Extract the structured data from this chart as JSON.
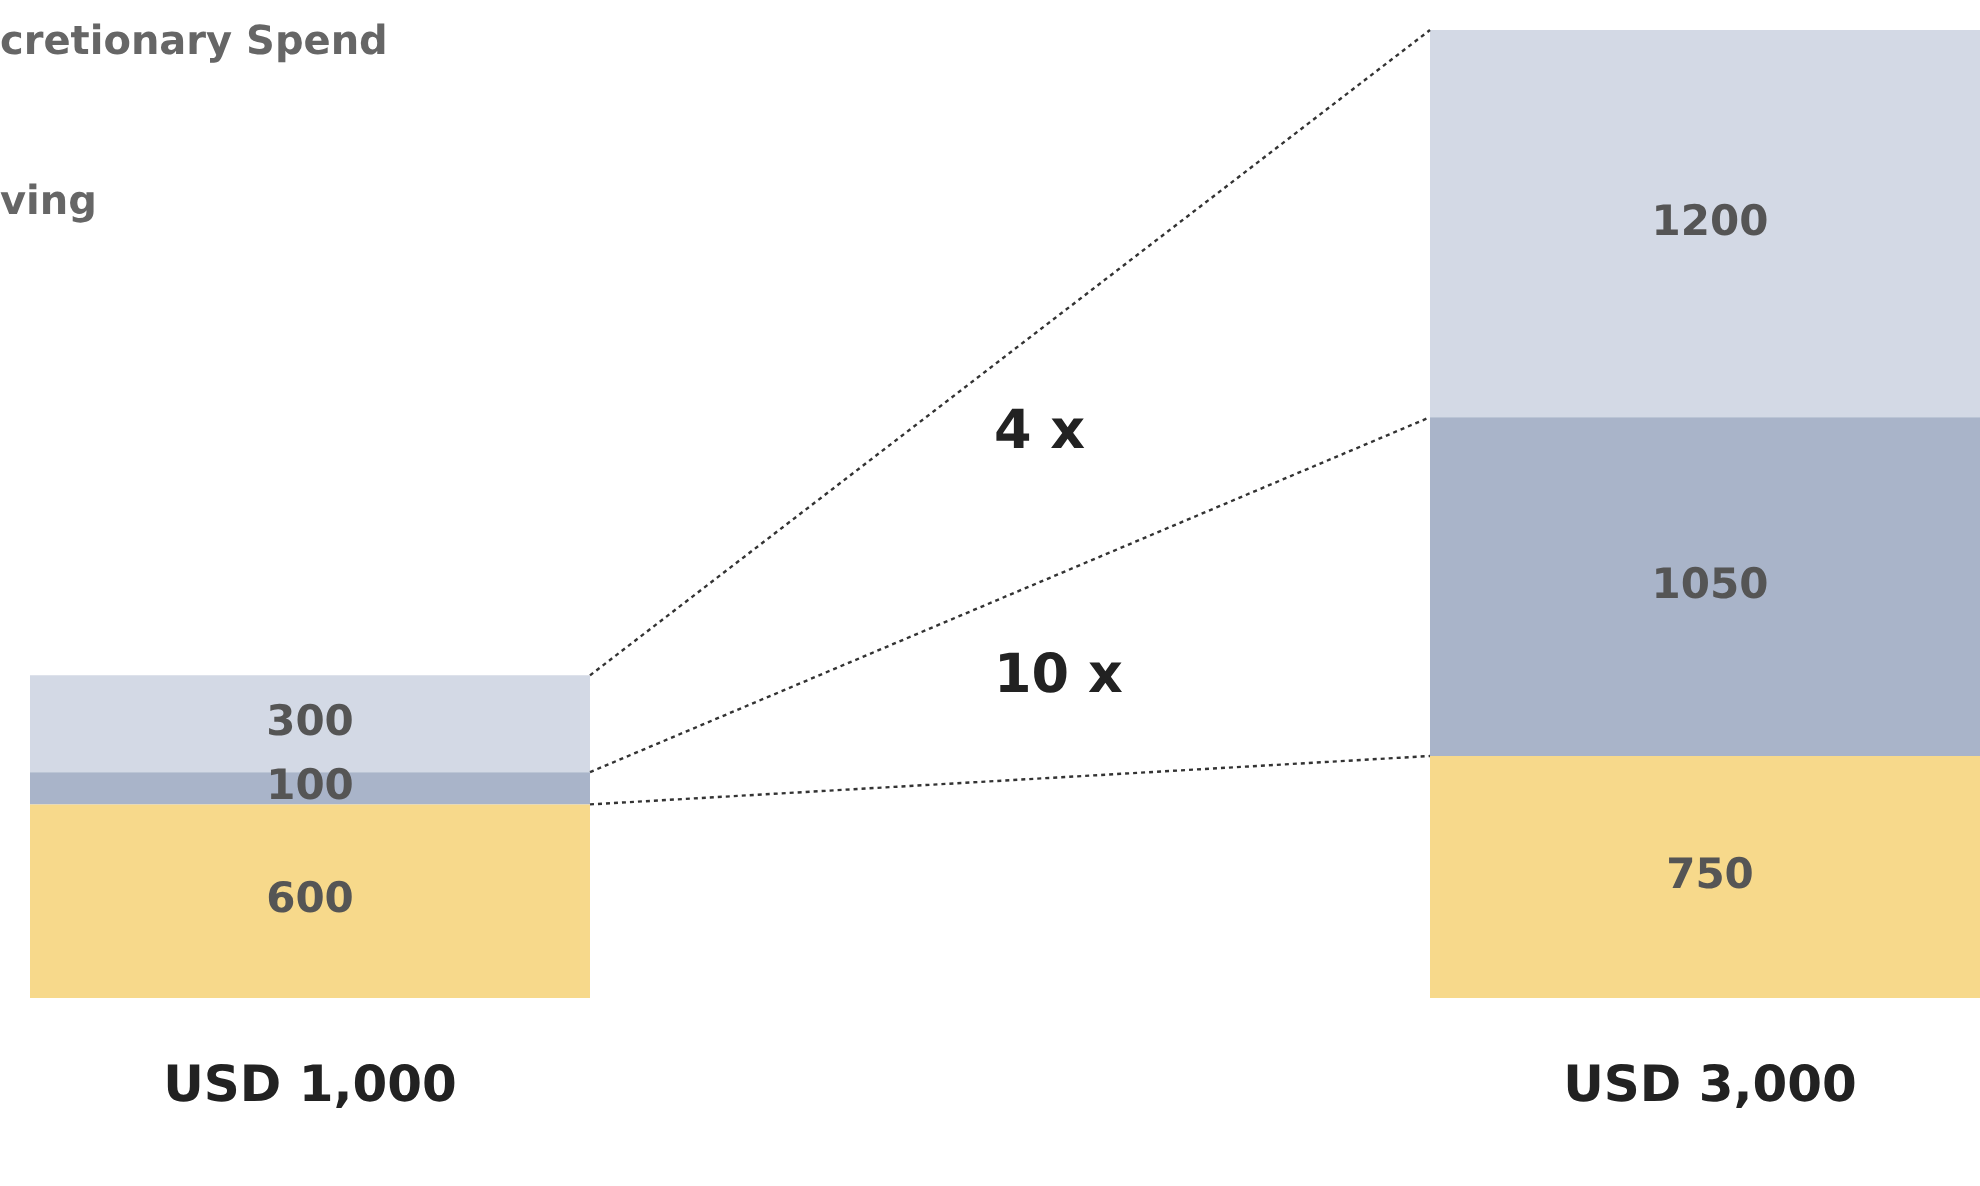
{
  "chart_data": {
    "type": "bar",
    "stacked": true,
    "data_labels": true,
    "categories": [
      "USD 1,000",
      "USD 3,000"
    ],
    "series": [
      {
        "color": "#f7d98b",
        "values": [
          600,
          750
        ]
      },
      {
        "color": "#a9b4c9",
        "values": [
          100,
          1050
        ]
      },
      {
        "color": "#d3d9e5",
        "values": [
          300,
          1200
        ]
      }
    ],
    "annotations": [
      "cretionary Spend",
      "ving",
      "4 x",
      "10 x"
    ],
    "legend": false,
    "grid": false
  }
}
